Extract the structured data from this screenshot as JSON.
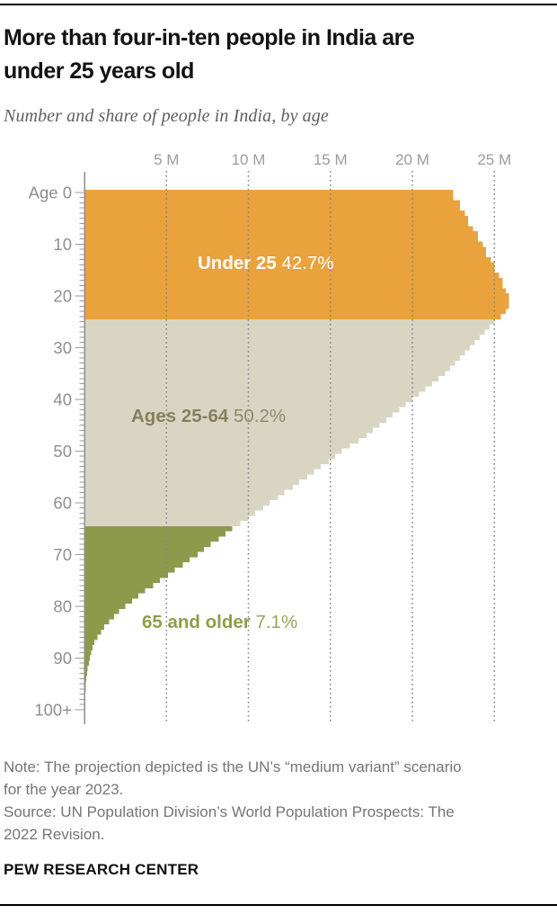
{
  "header": {
    "title_lines": [
      "More than four-in-ten people in India are",
      "under 25 years old"
    ],
    "subtitle": "Number and share of people in India, by age"
  },
  "chart_data": {
    "type": "bar",
    "orientation": "horizontal_single_year_age_pyramid",
    "title": "Number and share of people in India, by age",
    "unit": "millions of people per single year of age",
    "x_axis": {
      "position": "top",
      "tick_labels": [
        "5 M",
        "10 M",
        "15 M",
        "20 M",
        "25 M"
      ],
      "tick_values": [
        5,
        10,
        15,
        20,
        25
      ],
      "max_value": 28.8,
      "gridline_style": "dotted"
    },
    "y_axis": {
      "decade_tick_labels": [
        "Age 0",
        "10",
        "20",
        "30",
        "40",
        "50",
        "60",
        "70",
        "80",
        "90",
        "100+"
      ],
      "age_range": [
        0,
        100
      ],
      "minor_tick_every_year": true
    },
    "series": [
      {
        "name": "Under 25",
        "share_label": "42.7%",
        "color": "#E9A23C",
        "label_color": "#FFFFFF",
        "value_color": "#FFFFFF",
        "age_start": 0,
        "values_m": [
          22.5,
          22.5,
          22.9,
          22.9,
          23.2,
          23.4,
          23.4,
          23.7,
          24.0,
          24.0,
          24.3,
          24.5,
          24.5,
          24.8,
          25.0,
          25.0,
          25.3,
          25.5,
          25.5,
          25.7,
          25.9,
          25.9,
          25.9,
          25.7,
          25.4
        ]
      },
      {
        "name": "Ages 25-64",
        "share_label": "50.2%",
        "color": "#D9D5C3",
        "label_color": "#84805D",
        "value_color": "#8D8969",
        "age_start": 25,
        "values_m": [
          25.0,
          24.7,
          24.4,
          24.1,
          23.8,
          23.5,
          23.2,
          22.9,
          22.6,
          22.3,
          22.0,
          21.6,
          21.2,
          20.8,
          20.4,
          20.0,
          19.6,
          19.2,
          18.8,
          18.4,
          18.0,
          17.6,
          17.2,
          16.7,
          16.2,
          15.7,
          15.3,
          14.9,
          14.4,
          14.0,
          13.6,
          13.1,
          12.7,
          12.2,
          11.8,
          11.3,
          10.9,
          10.4,
          10.0,
          9.5
        ]
      },
      {
        "name": "65 and older",
        "share_label": "7.1%",
        "color": "#8E9A4B",
        "label_color": "#8F9E48",
        "value_color": "#99A659",
        "age_start": 65,
        "values_m": [
          9.0,
          8.6,
          8.2,
          7.7,
          7.3,
          6.9,
          6.4,
          6.0,
          5.5,
          5.1,
          4.6,
          4.2,
          3.7,
          3.3,
          2.9,
          2.5,
          2.1,
          1.8,
          1.5,
          1.2,
          1.0,
          0.8,
          0.6,
          0.5,
          0.4,
          0.33,
          0.26,
          0.2,
          0.16,
          0.12,
          0.09,
          0.07,
          0.05,
          0.03,
          0.02,
          0.015
        ]
      }
    ],
    "legend_position": "labels_inside_plot"
  },
  "footer": {
    "note_lines": [
      "Note: The projection depicted is the UN’s “medium variant” scenario",
      "for the year 2023.",
      "Source: UN Population Division’s World Population Prospects: The",
      "2022 Revision."
    ],
    "brand": "PEW RESEARCH CENTER"
  }
}
